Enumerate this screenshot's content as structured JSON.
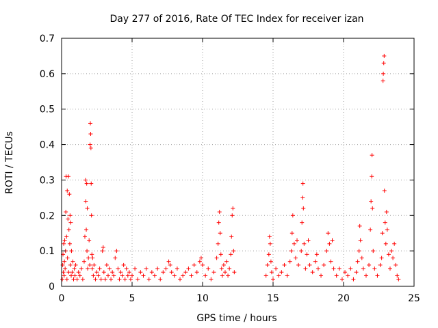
{
  "chart_data": {
    "type": "scatter",
    "title": "Day 277 of 2016, Rate Of TEC Index for receiver izan",
    "xlabel": "GPS time / hours",
    "ylabel": "ROTI / TECUs",
    "xlim": [
      0,
      25
    ],
    "ylim": [
      0,
      0.7
    ],
    "xticks": [
      0,
      5,
      10,
      15,
      20,
      25
    ],
    "xtick_labels": [
      "0",
      "5",
      "10",
      "15",
      "20",
      "25"
    ],
    "yticks": [
      0,
      0.1,
      0.2,
      0.3,
      0.4,
      0.5,
      0.6,
      0.7
    ],
    "ytick_labels": [
      "0",
      "0.1",
      "0.2",
      "0.3",
      "0.4",
      "0.5",
      "0.6",
      "0.7"
    ],
    "grid": true,
    "marker": "plus",
    "color": "#ff0000",
    "series": [
      {
        "name": "ROTI",
        "points": [
          [
            0.05,
            0.02
          ],
          [
            0.08,
            0.06
          ],
          [
            0.1,
            0.09
          ],
          [
            0.12,
            0.04
          ],
          [
            0.15,
            0.12
          ],
          [
            0.18,
            0.03
          ],
          [
            0.2,
            0.07
          ],
          [
            0.22,
            0.13
          ],
          [
            0.25,
            0.05
          ],
          [
            0.28,
            0.1
          ],
          [
            0.3,
            0.21
          ],
          [
            0.32,
            0.31
          ],
          [
            0.35,
            0.14
          ],
          [
            0.38,
            0.02
          ],
          [
            0.4,
            0.27
          ],
          [
            0.42,
            0.08
          ],
          [
            0.45,
            0.19
          ],
          [
            0.48,
            0.31
          ],
          [
            0.5,
            0.04
          ],
          [
            0.52,
            0.16
          ],
          [
            0.55,
            0.26
          ],
          [
            0.58,
            0.12
          ],
          [
            0.6,
            0.2
          ],
          [
            0.62,
            0.06
          ],
          [
            0.65,
            0.18
          ],
          [
            0.68,
            0.03
          ],
          [
            0.7,
            0.1
          ],
          [
            0.75,
            0.04
          ],
          [
            0.8,
            0.07
          ],
          [
            0.85,
            0.02
          ],
          [
            0.9,
            0.05
          ],
          [
            0.95,
            0.03
          ],
          [
            1.0,
            0.06
          ],
          [
            1.1,
            0.02
          ],
          [
            1.2,
            0.04
          ],
          [
            1.3,
            0.03
          ],
          [
            1.4,
            0.05
          ],
          [
            1.5,
            0.02
          ],
          [
            1.6,
            0.07
          ],
          [
            1.65,
            0.14
          ],
          [
            1.7,
            0.3
          ],
          [
            1.72,
            0.24
          ],
          [
            1.75,
            0.16
          ],
          [
            1.78,
            0.29
          ],
          [
            1.8,
            0.1
          ],
          [
            1.82,
            0.22
          ],
          [
            1.85,
            0.05
          ],
          [
            1.9,
            0.08
          ],
          [
            1.95,
            0.13
          ],
          [
            2.0,
            0.06
          ],
          [
            2.02,
            0.4
          ],
          [
            2.04,
            0.46
          ],
          [
            2.06,
            0.43
          ],
          [
            2.08,
            0.39
          ],
          [
            2.1,
            0.29
          ],
          [
            2.12,
            0.2
          ],
          [
            2.15,
            0.09
          ],
          [
            2.18,
            0.05
          ],
          [
            2.2,
            0.08
          ],
          [
            2.25,
            0.03
          ],
          [
            2.3,
            0.06
          ],
          [
            2.4,
            0.02
          ],
          [
            2.5,
            0.04
          ],
          [
            2.6,
            0.03
          ],
          [
            2.7,
            0.05
          ],
          [
            2.8,
            0.02
          ],
          [
            2.9,
            0.1
          ],
          [
            2.95,
            0.11
          ],
          [
            3.0,
            0.04
          ],
          [
            3.1,
            0.02
          ],
          [
            3.2,
            0.06
          ],
          [
            3.3,
            0.03
          ],
          [
            3.4,
            0.05
          ],
          [
            3.5,
            0.02
          ],
          [
            3.6,
            0.04
          ],
          [
            3.7,
            0.03
          ],
          [
            3.8,
            0.08
          ],
          [
            3.9,
            0.1
          ],
          [
            4.0,
            0.05
          ],
          [
            4.1,
            0.02
          ],
          [
            4.2,
            0.04
          ],
          [
            4.3,
            0.03
          ],
          [
            4.4,
            0.06
          ],
          [
            4.5,
            0.02
          ],
          [
            4.6,
            0.05
          ],
          [
            4.7,
            0.03
          ],
          [
            4.8,
            0.04
          ],
          [
            4.9,
            0.02
          ],
          [
            5.0,
            0.03
          ],
          [
            5.2,
            0.05
          ],
          [
            5.4,
            0.02
          ],
          [
            5.6,
            0.04
          ],
          [
            5.8,
            0.03
          ],
          [
            6.0,
            0.05
          ],
          [
            6.2,
            0.02
          ],
          [
            6.4,
            0.04
          ],
          [
            6.6,
            0.03
          ],
          [
            6.8,
            0.05
          ],
          [
            7.0,
            0.02
          ],
          [
            7.2,
            0.04
          ],
          [
            7.4,
            0.05
          ],
          [
            7.6,
            0.07
          ],
          [
            7.7,
            0.06
          ],
          [
            7.8,
            0.04
          ],
          [
            8.0,
            0.03
          ],
          [
            8.2,
            0.05
          ],
          [
            8.4,
            0.02
          ],
          [
            8.6,
            0.03
          ],
          [
            8.8,
            0.04
          ],
          [
            9.0,
            0.05
          ],
          [
            9.2,
            0.03
          ],
          [
            9.4,
            0.06
          ],
          [
            9.6,
            0.04
          ],
          [
            9.8,
            0.07
          ],
          [
            9.9,
            0.08
          ],
          [
            10.0,
            0.06
          ],
          [
            10.2,
            0.03
          ],
          [
            10.4,
            0.05
          ],
          [
            10.6,
            0.02
          ],
          [
            10.8,
            0.04
          ],
          [
            11.0,
            0.08
          ],
          [
            11.1,
            0.12
          ],
          [
            11.15,
            0.18
          ],
          [
            11.2,
            0.21
          ],
          [
            11.25,
            0.15
          ],
          [
            11.3,
            0.09
          ],
          [
            11.35,
            0.05
          ],
          [
            11.4,
            0.03
          ],
          [
            11.5,
            0.06
          ],
          [
            11.6,
            0.04
          ],
          [
            11.7,
            0.07
          ],
          [
            11.8,
            0.03
          ],
          [
            11.9,
            0.05
          ],
          [
            12.0,
            0.09
          ],
          [
            12.05,
            0.14
          ],
          [
            12.1,
            0.2
          ],
          [
            12.15,
            0.22
          ],
          [
            12.2,
            0.1
          ],
          [
            12.25,
            0.04
          ],
          [
            14.5,
            0.03
          ],
          [
            14.6,
            0.06
          ],
          [
            14.7,
            0.09
          ],
          [
            14.75,
            0.14
          ],
          [
            14.8,
            0.12
          ],
          [
            14.85,
            0.07
          ],
          [
            14.9,
            0.04
          ],
          [
            15.0,
            0.02
          ],
          [
            15.2,
            0.05
          ],
          [
            15.4,
            0.03
          ],
          [
            15.6,
            0.04
          ],
          [
            15.8,
            0.06
          ],
          [
            16.0,
            0.03
          ],
          [
            16.2,
            0.07
          ],
          [
            16.3,
            0.1
          ],
          [
            16.35,
            0.15
          ],
          [
            16.4,
            0.2
          ],
          [
            16.5,
            0.12
          ],
          [
            16.6,
            0.08
          ],
          [
            16.7,
            0.13
          ],
          [
            16.8,
            0.06
          ],
          [
            17.0,
            0.1
          ],
          [
            17.05,
            0.18
          ],
          [
            17.1,
            0.25
          ],
          [
            17.12,
            0.29
          ],
          [
            17.15,
            0.22
          ],
          [
            17.2,
            0.12
          ],
          [
            17.3,
            0.05
          ],
          [
            17.4,
            0.09
          ],
          [
            17.5,
            0.13
          ],
          [
            17.6,
            0.06
          ],
          [
            17.8,
            0.04
          ],
          [
            18.0,
            0.07
          ],
          [
            18.1,
            0.09
          ],
          [
            18.2,
            0.05
          ],
          [
            18.4,
            0.03
          ],
          [
            18.6,
            0.06
          ],
          [
            18.8,
            0.1
          ],
          [
            18.9,
            0.15
          ],
          [
            19.0,
            0.12
          ],
          [
            19.1,
            0.07
          ],
          [
            19.2,
            0.13
          ],
          [
            19.3,
            0.05
          ],
          [
            19.5,
            0.03
          ],
          [
            19.7,
            0.05
          ],
          [
            19.9,
            0.02
          ],
          [
            20.1,
            0.04
          ],
          [
            20.3,
            0.03
          ],
          [
            20.5,
            0.05
          ],
          [
            20.7,
            0.02
          ],
          [
            20.9,
            0.04
          ],
          [
            21.0,
            0.07
          ],
          [
            21.1,
            0.1
          ],
          [
            21.15,
            0.17
          ],
          [
            21.2,
            0.13
          ],
          [
            21.3,
            0.08
          ],
          [
            21.4,
            0.05
          ],
          [
            21.6,
            0.03
          ],
          [
            21.8,
            0.06
          ],
          [
            21.9,
            0.16
          ],
          [
            21.95,
            0.24
          ],
          [
            22.0,
            0.31
          ],
          [
            22.02,
            0.37
          ],
          [
            22.05,
            0.22
          ],
          [
            22.1,
            0.1
          ],
          [
            22.2,
            0.05
          ],
          [
            22.4,
            0.03
          ],
          [
            22.6,
            0.06
          ],
          [
            22.7,
            0.08
          ],
          [
            22.75,
            0.15
          ],
          [
            22.8,
            0.58
          ],
          [
            22.82,
            0.6
          ],
          [
            22.85,
            0.63
          ],
          [
            22.88,
            0.65
          ],
          [
            22.9,
            0.27
          ],
          [
            22.95,
            0.18
          ],
          [
            23.0,
            0.12
          ],
          [
            23.05,
            0.21
          ],
          [
            23.1,
            0.16
          ],
          [
            23.2,
            0.09
          ],
          [
            23.3,
            0.05
          ],
          [
            23.4,
            0.1
          ],
          [
            23.5,
            0.08
          ],
          [
            23.6,
            0.12
          ],
          [
            23.7,
            0.06
          ],
          [
            23.8,
            0.03
          ],
          [
            23.9,
            0.02
          ]
        ]
      }
    ]
  }
}
